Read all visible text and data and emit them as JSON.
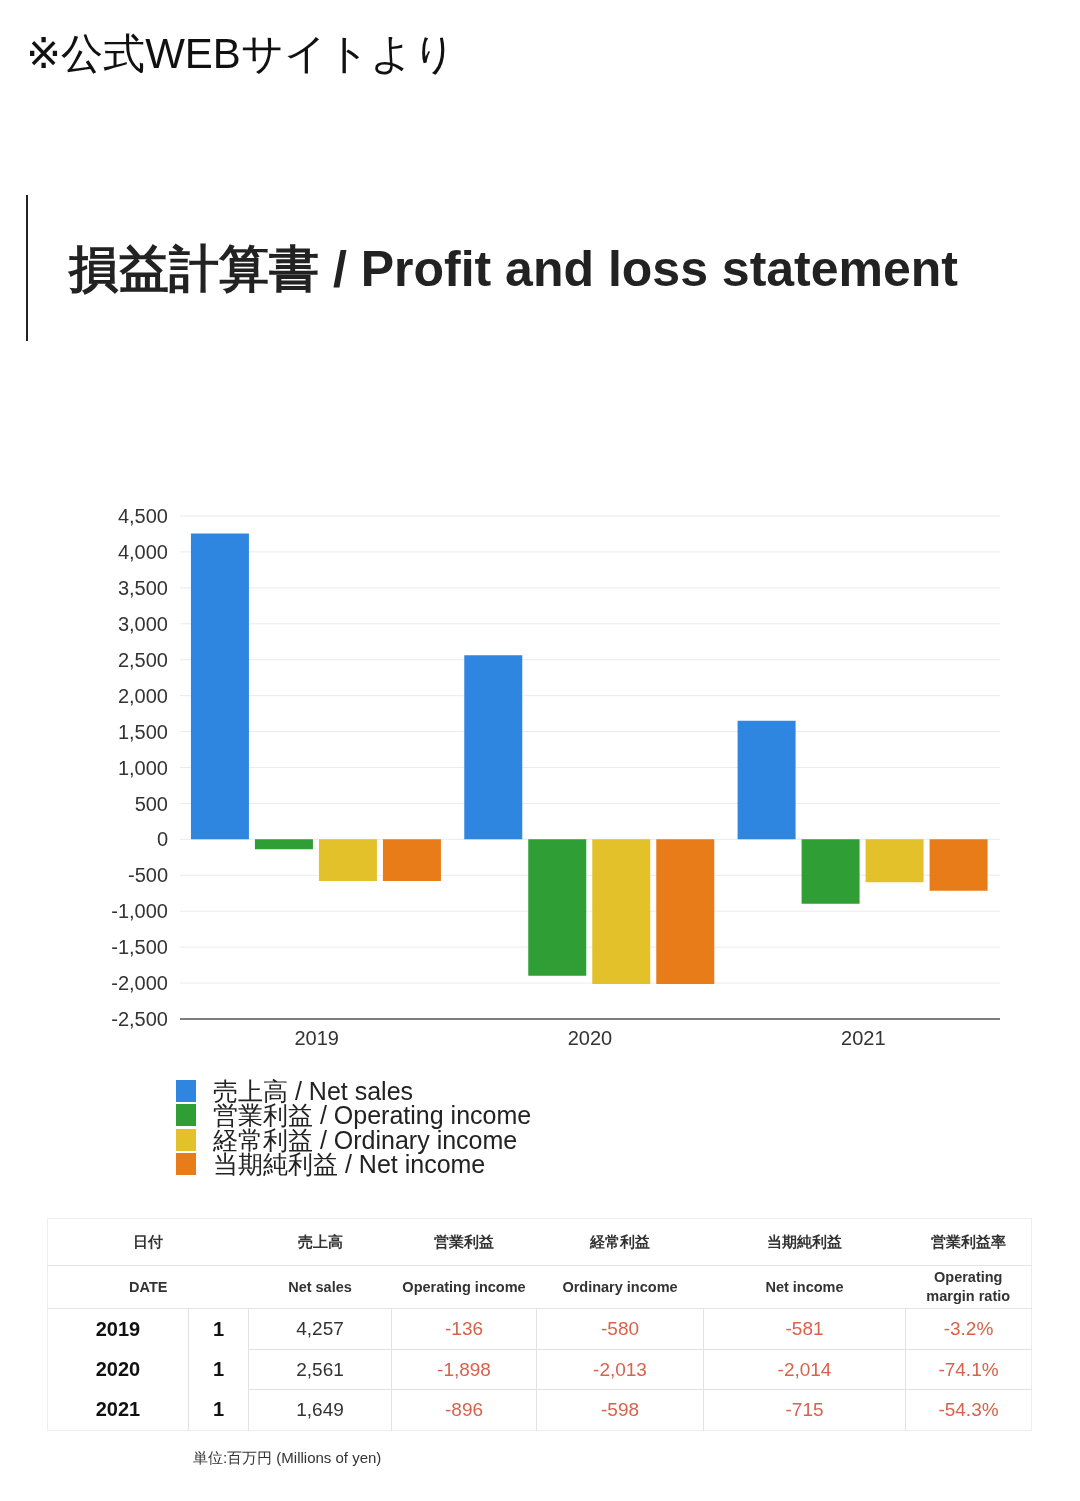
{
  "chart_data": [
    {
      "type": "bar",
      "title": "損益計算書 / Profit and loss statement",
      "categories": [
        "2019",
        "2020",
        "2021"
      ],
      "series": [
        {
          "name": "売上高 / Net sales",
          "color": "#2f86e0",
          "values": [
            4257,
            2561,
            1649
          ]
        },
        {
          "name": "営業利益 / Operating income",
          "color": "#2e9e35",
          "values": [
            -136,
            -1898,
            -896
          ]
        },
        {
          "name": "経常利益 / Ordinary income",
          "color": "#e3c12a",
          "values": [
            -580,
            -2013,
            -598
          ]
        },
        {
          "name": "当期純利益 / Net income",
          "color": "#e77c18",
          "values": [
            -581,
            -2014,
            -715
          ]
        }
      ],
      "ylim": [
        -2500,
        4500
      ],
      "yticks": [
        {
          "value": -2500,
          "label": "-2,500"
        },
        {
          "value": -2000,
          "label": "-2,000"
        },
        {
          "value": -1500,
          "label": "-1,500"
        },
        {
          "value": -1000,
          "label": "-1,000"
        },
        -500,
        0,
        500,
        {
          "value": 1000,
          "label": "1,000"
        },
        {
          "value": 1500,
          "label": "1,500"
        },
        {
          "value": 2000,
          "label": "2,000"
        },
        {
          "value": 2500,
          "label": "2,500"
        },
        {
          "value": 3000,
          "label": "3,000"
        },
        {
          "value": 3500,
          "label": "3,500"
        },
        {
          "value": 4000,
          "label": "4,000"
        },
        {
          "value": 4500,
          "label": "4,500"
        }
      ],
      "grid": "y",
      "legend": "bottom left",
      "annotations": [
        "※公式WEBサイトより"
      ]
    },
    {
      "type": "other",
      "categories": [
        null,
        "売上高",
        "営業利益",
        "経常利益",
        "当期純利益",
        "営業利益率"
      ],
      "y_categories": [
        "2019",
        "2020",
        "2021"
      ],
      "cell_labels": [
        [
          "1",
          "4,257",
          "-136",
          "-580",
          "-581",
          "-3.2%"
        ],
        [
          "1",
          "2,561",
          "-1,898",
          "-2,013",
          "-2,014",
          "-74.1%"
        ],
        [
          "1",
          "1,649",
          "-896",
          "-598",
          "-715",
          "-54.3%"
        ]
      ],
      "annotations": [
        "日付",
        "DATE",
        "Net sales",
        "Operating income",
        "Ordinary income",
        "Net income",
        "Operating margin ratio",
        "単位:百万円 (Millions of yen)"
      ]
    }
  ]
}
